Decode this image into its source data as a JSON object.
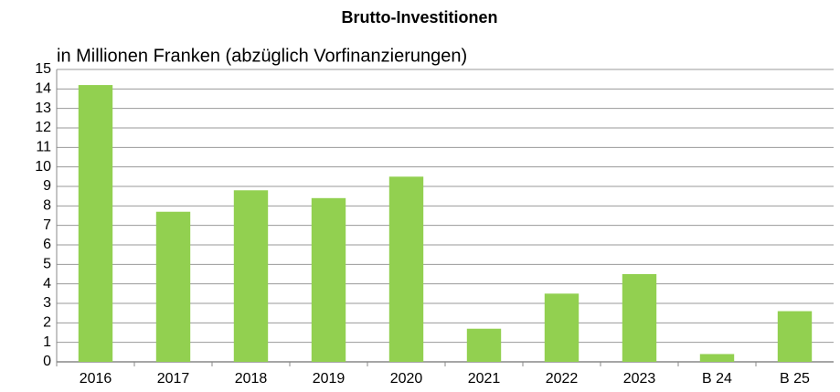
{
  "chart_data": {
    "type": "bar",
    "title": "Brutto-Investitionen",
    "subtitle": "in Millionen Franken (abzüglich Vorfinanzierungen)",
    "categories": [
      "2016",
      "2017",
      "2018",
      "2019",
      "2020",
      "2021",
      "2022",
      "2023",
      "B 24",
      "B 25"
    ],
    "values": [
      14.2,
      7.7,
      8.8,
      8.4,
      9.5,
      1.7,
      3.5,
      4.5,
      0.4,
      2.6
    ],
    "color": "#92d050",
    "ylim": [
      0,
      15
    ],
    "yticks": [
      0,
      1,
      2,
      3,
      4,
      5,
      6,
      7,
      8,
      9,
      10,
      11,
      12,
      13,
      14,
      15
    ],
    "grid": true
  }
}
